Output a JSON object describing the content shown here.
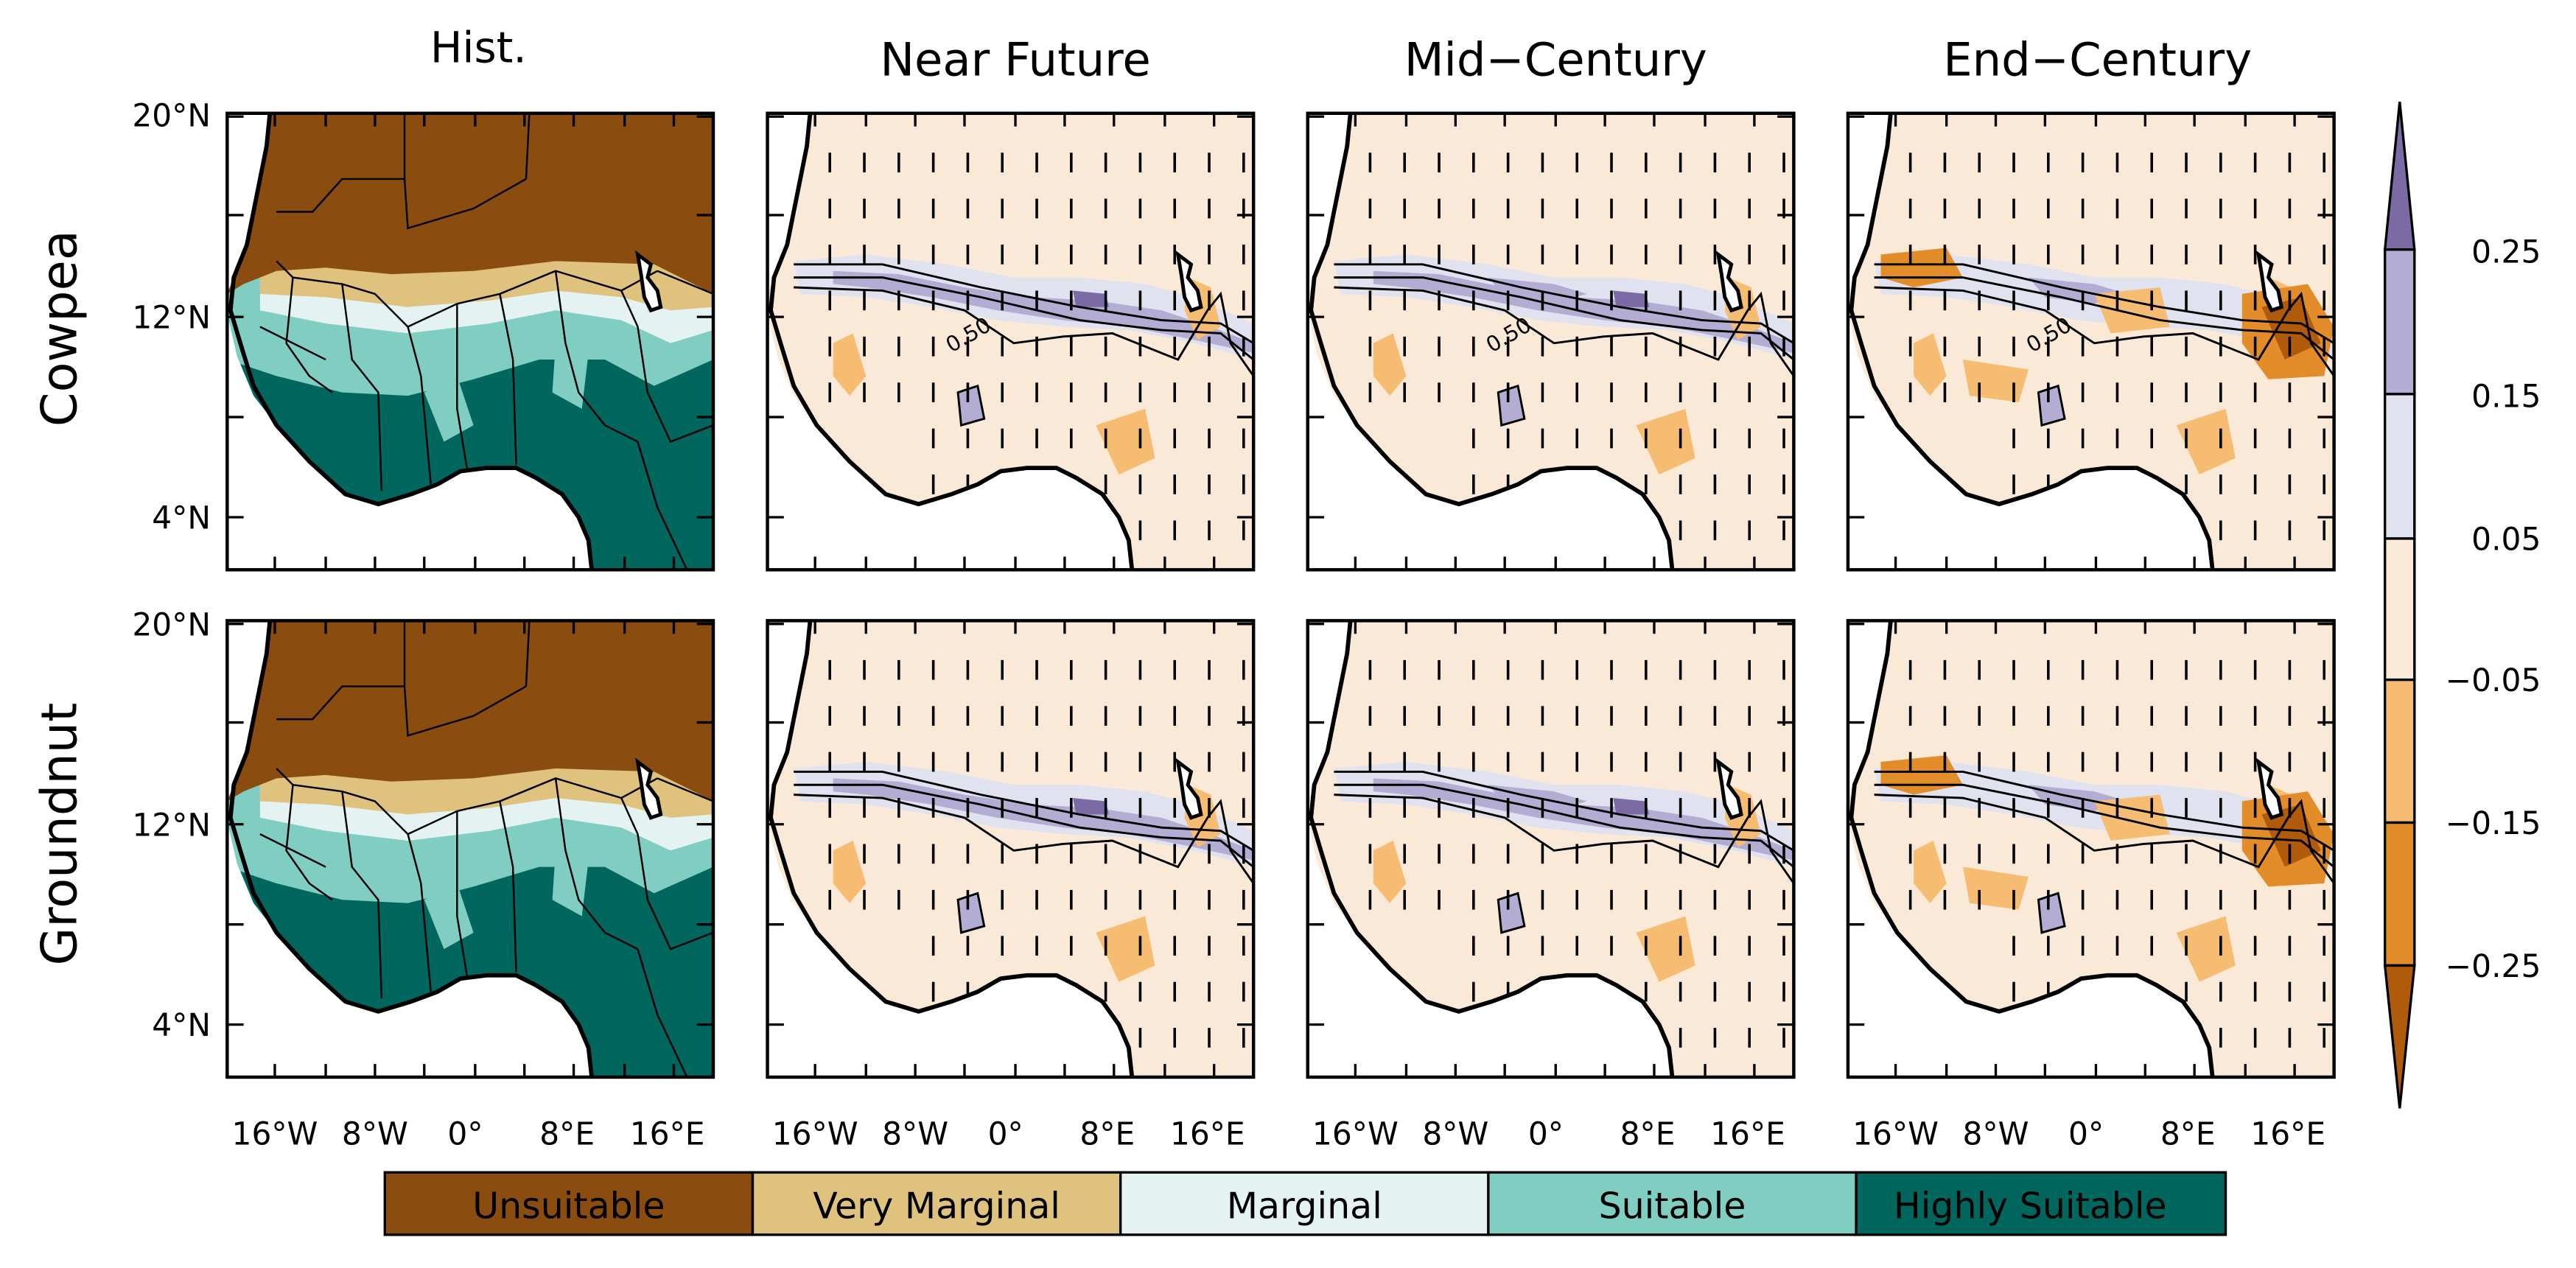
{
  "columns": [
    "Hist.",
    "Near Future",
    "Mid−Century",
    "End−Century"
  ],
  "rows": [
    "Cowpea",
    "Groundnut"
  ],
  "lat_labels": [
    "20°N",
    "12°N",
    "4°N"
  ],
  "lon_labels": [
    "16°W",
    "8°W",
    "0°",
    "8°E",
    "16°E"
  ],
  "contour_label": "0.50",
  "colorbar": {
    "labels": [
      "0.25",
      "0.15",
      "0.05",
      "−0.05",
      "−0.15",
      "−0.25"
    ],
    "colors": [
      "#7a6aa6",
      "#b3acd3",
      "#e0e2ef",
      "#fbe9d8",
      "#f6bd72",
      "#e38d2a",
      "#b05a0c"
    ]
  },
  "legend": [
    {
      "label": "Unsuitable",
      "color": "#8a4d0f"
    },
    {
      "label": "Very Marginal",
      "color": "#dfc27d"
    },
    {
      "label": "Marginal",
      "color": "#e4f3f2"
    },
    {
      "label": "Suitable",
      "color": "#80cdc1"
    },
    {
      "label": "Highly Suitable",
      "color": "#01665e"
    }
  ]
}
